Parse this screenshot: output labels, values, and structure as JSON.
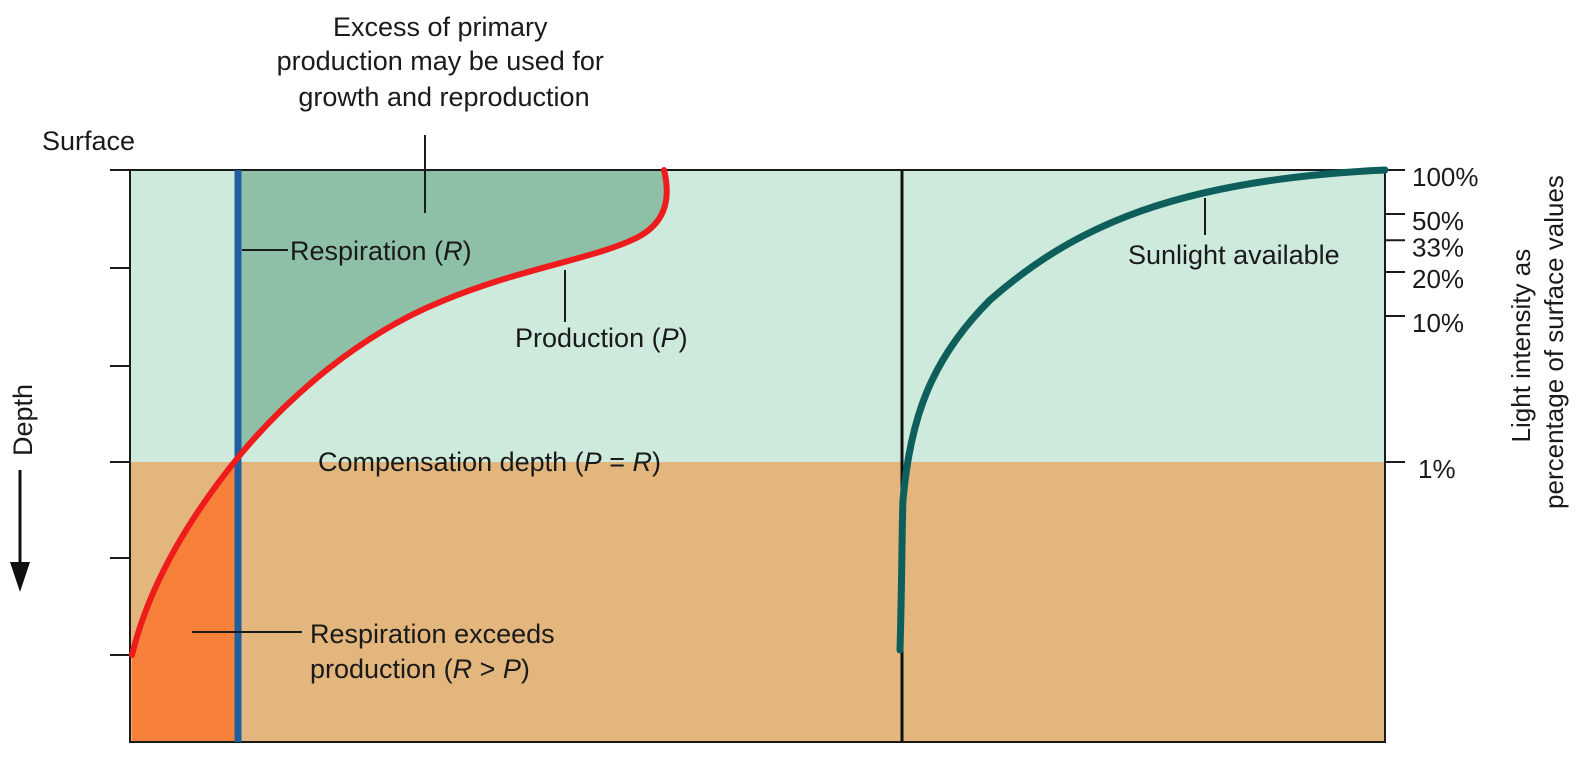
{
  "labels": {
    "surface": "Surface",
    "depth": "Depth",
    "excess_line1": "Excess of primary",
    "excess_line2": "production may be used for",
    "excess_line3": "growth and reproduction",
    "respiration_main": "Respiration (",
    "respiration_sym": "R",
    "respiration_close": ")",
    "production_main": "Production (",
    "production_sym": "P",
    "production_close": ")",
    "compensation_main": "Compensation depth (",
    "compensation_p": "P",
    "compensation_eq": " = ",
    "compensation_r": "R",
    "compensation_close": ")",
    "exceeds_line1": "Respiration exceeds",
    "exceeds_line2_a": "production (",
    "exceeds_line2_r": "R",
    "exceeds_line2_gt": " > ",
    "exceeds_line2_p": "P",
    "exceeds_line2_close": ")",
    "sunlight": "Sunlight available",
    "axis_title_line1": "Light intensity as",
    "axis_title_line2": "percentage of surface values"
  },
  "light_ticks": [
    {
      "label": "100%",
      "percent": 100
    },
    {
      "label": "50%",
      "percent": 50
    },
    {
      "label": "33%",
      "percent": 33
    },
    {
      "label": "20%",
      "percent": 20
    },
    {
      "label": "10%",
      "percent": 10
    },
    {
      "label": "1%",
      "percent": 1
    }
  ],
  "colors": {
    "photic_zone": "#cdeadc",
    "aphotic_zone": "#e2b67c",
    "excess_fill": "#8ec0a8",
    "deficit_fill": "#f7813a",
    "production_curve": "#ee1c1c",
    "respiration_line": "#1f5fa0",
    "sunlight_curve": "#0e5f5c"
  }
}
